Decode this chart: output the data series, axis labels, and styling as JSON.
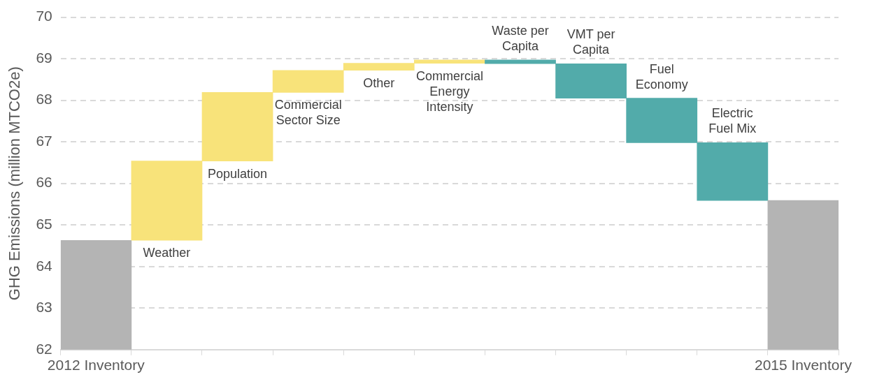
{
  "chart_data": {
    "type": "bar",
    "ylabel": "GHG Emissions (million MTCO2e)",
    "categories": [
      "2012 Inventory",
      null,
      null,
      null,
      null,
      null,
      null,
      null,
      null,
      null,
      "2015 Inventory"
    ],
    "base": [
      62,
      64.63,
      66.54,
      68.19,
      68.72,
      68.89,
      68.97,
      68.88,
      68.05,
      66.98,
      62
    ],
    "values": [
      2.63,
      1.91,
      1.65,
      0.53,
      0.17,
      0.08,
      -0.09,
      -0.83,
      -1.07,
      -1.39,
      3.59
    ],
    "colors": [
      "#b4b4b4",
      "#f8e37a",
      "#f8e37a",
      "#f8e37a",
      "#f8e37a",
      "#f8e37a",
      "#52abaa",
      "#52abaa",
      "#52abaa",
      "#52abaa",
      "#b4b4b4"
    ],
    "ylim": [
      62,
      70
    ],
    "yticks": [
      62,
      63,
      64,
      65,
      66,
      67,
      68,
      69,
      70
    ],
    "grid": "y",
    "legend": false,
    "annotations": [
      "Weather",
      "Population",
      "Commercial Sector Size",
      "Other",
      "Commercial Energy Intensity",
      "Waste per Capita",
      "VMT per Capita",
      "Fuel Economy",
      "Electric Fuel Mix"
    ]
  }
}
